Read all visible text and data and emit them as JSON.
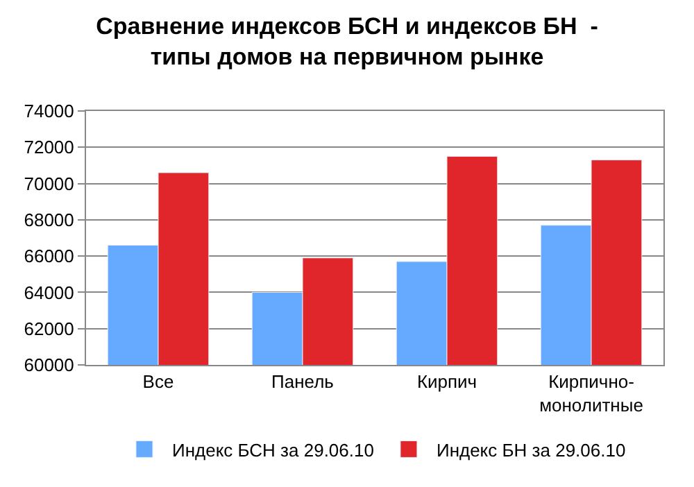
{
  "chart_data": {
    "type": "bar",
    "title": "Сравнение индексов БСН и индексов БН  -\nтипы домов на первичном рынке",
    "categories": [
      "Все",
      "Панель",
      "Кирпич",
      "Кирпично-\nмонолитные"
    ],
    "series": [
      {
        "name": "Индекс БСН за 29.06.10",
        "color": "#66aaff",
        "values": [
          66600,
          64000,
          65700,
          67700
        ]
      },
      {
        "name": "Индекс БН за 29.06.10",
        "color": "#e0262b",
        "values": [
          70600,
          65900,
          71500,
          71300
        ]
      }
    ],
    "ylim": [
      60000,
      74000
    ],
    "yticks": [
      60000,
      62000,
      64000,
      66000,
      68000,
      70000,
      72000,
      74000
    ],
    "grid": "y",
    "legend": "bottom"
  }
}
